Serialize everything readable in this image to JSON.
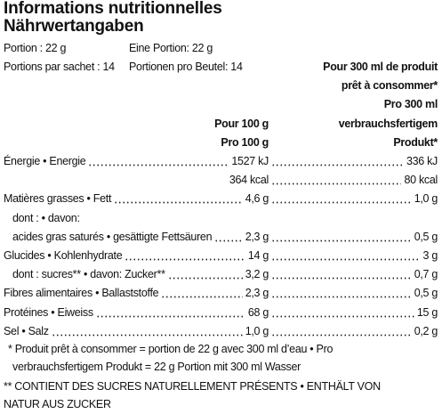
{
  "header": {
    "title": "Informations nutritionnelles",
    "subtitle": "Nährwertangaben"
  },
  "portion": [
    {
      "fr": "Portion : 22 g",
      "de": "Eine Portion: 22 g"
    },
    {
      "fr": "Portions par sachet : 14",
      "de": "Portionen pro Beutel: 14"
    }
  ],
  "columns": {
    "per100": [
      "Pour 100 g",
      "Pro 100 g"
    ],
    "per300": [
      "Pour 300 ml de produit",
      "prêt à consommer*",
      "Pro 300 ml",
      "verbrauchsfertigem",
      "Produkt*"
    ]
  },
  "rows": [
    {
      "label": "Énergie • Energie",
      "per100": "1527 kJ",
      "per300": "336 kJ"
    },
    {
      "per100": "364 kcal",
      "per300": "80 kcal"
    },
    {
      "label": "Matières grasses • Fett",
      "per100": "4,6 g",
      "per300": "1,0 g"
    },
    {
      "label": "dont : • davon:",
      "indent": true
    },
    {
      "label": "acides gras saturés • gesättigte Fettsäuren",
      "per100": "2,3 g",
      "per300": "0,5 g",
      "indent": true
    },
    {
      "label": "Glucides • Kohlenhydrate",
      "per100": "14 g",
      "per300": "3 g"
    },
    {
      "label": "dont : sucres** • davon: Zucker**",
      "per100": "3,2 g",
      "per300": "0,7 g",
      "indent": true
    },
    {
      "label": "Fibres alimentaires • Ballaststoffe",
      "per100": "2,3 g",
      "per300": "0,5 g"
    },
    {
      "label": "Protéines • Eiweiss",
      "per100": "68 g",
      "per300": "15 g"
    },
    {
      "label": "Sel • Salz",
      "per100": "1,0 g",
      "per300": "0,2 g"
    }
  ],
  "footnotes": [
    "* Produit prêt à consommer = portion de 22 g avec 300 ml d’eau • Pro verbrauchsfertigem Produkt = 22 g Portion mit 300 ml Wasser",
    "** CONTIENT DES SUCRES NATURELLEMENT PRÉSENTS • ENTHÄLT VON NATUR AUS ZUCKER"
  ]
}
